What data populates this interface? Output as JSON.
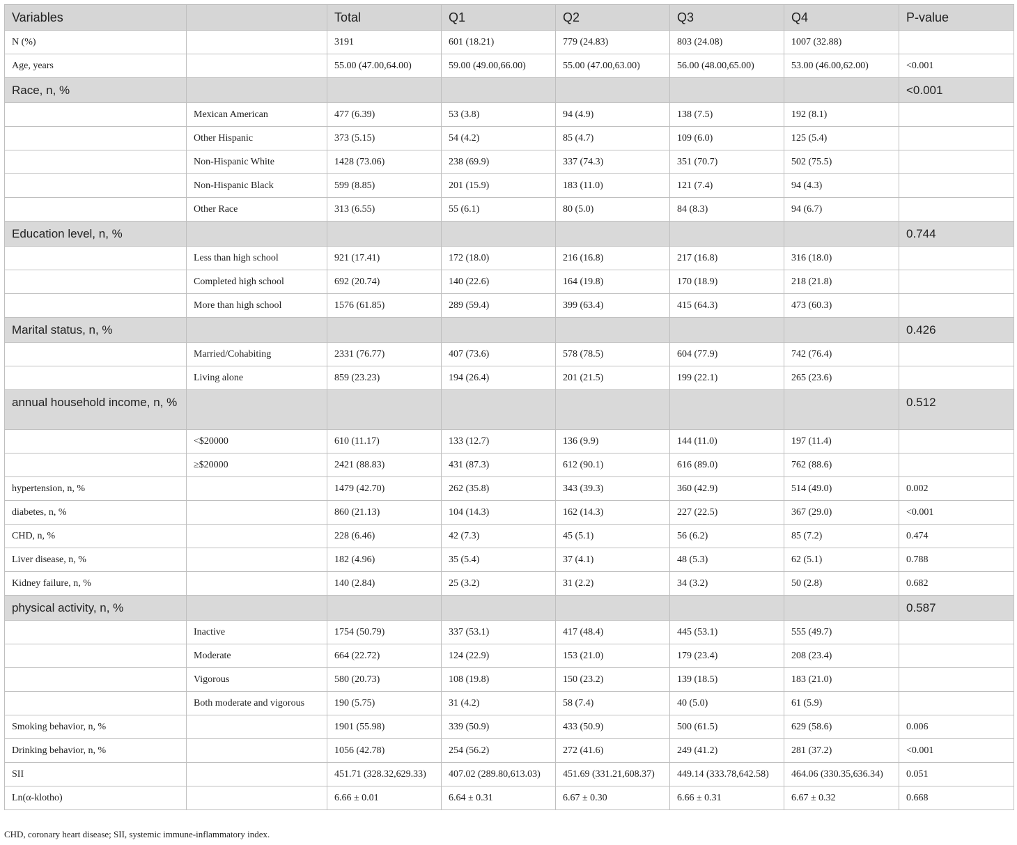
{
  "table": {
    "headers": [
      "Variables",
      "",
      "Total",
      "Q1",
      "Q2",
      "Q3",
      "Q4",
      "P-value"
    ],
    "rows": [
      {
        "type": "data",
        "cells": [
          "N (%)",
          "",
          "3191",
          "601 (18.21)",
          "779 (24.83)",
          "803 (24.08)",
          "1007 (32.88)",
          ""
        ]
      },
      {
        "type": "data",
        "cells": [
          "Age, years",
          "",
          "55.00 (47.00,64.00)",
          "59.00 (49.00,66.00)",
          "55.00 (47.00,63.00)",
          "56.00 (48.00,65.00)",
          "53.00 (46.00,62.00)",
          "<0.001"
        ]
      },
      {
        "type": "section",
        "cells": [
          "Race, n, %",
          "",
          "",
          "",
          "",
          "",
          "",
          "<0.001"
        ]
      },
      {
        "type": "data",
        "cells": [
          "",
          "Mexican American",
          "477 (6.39)",
          "53 (3.8)",
          "94 (4.9)",
          "138 (7.5)",
          "192 (8.1)",
          ""
        ]
      },
      {
        "type": "data",
        "cells": [
          "",
          "Other Hispanic",
          "373 (5.15)",
          "54 (4.2)",
          "85 (4.7)",
          "109 (6.0)",
          "125 (5.4)",
          ""
        ]
      },
      {
        "type": "data",
        "cells": [
          "",
          "Non-Hispanic White",
          "1428 (73.06)",
          "238 (69.9)",
          "337 (74.3)",
          "351 (70.7)",
          "502 (75.5)",
          ""
        ]
      },
      {
        "type": "data",
        "cells": [
          "",
          "Non-Hispanic Black",
          "599 (8.85)",
          "201 (15.9)",
          "183 (11.0)",
          "121 (7.4)",
          "94 (4.3)",
          ""
        ]
      },
      {
        "type": "data",
        "cells": [
          "",
          "Other Race",
          "313 (6.55)",
          "55 (6.1)",
          "80 (5.0)",
          "84 (8.3)",
          "94 (6.7)",
          ""
        ]
      },
      {
        "type": "section",
        "cells": [
          "Education level, n, %",
          "",
          "",
          "",
          "",
          "",
          "",
          "0.744"
        ]
      },
      {
        "type": "data",
        "cells": [
          "",
          "Less than high school",
          "921 (17.41)",
          "172 (18.0)",
          "216 (16.8)",
          "217 (16.8)",
          "316 (18.0)",
          ""
        ]
      },
      {
        "type": "data",
        "cells": [
          "",
          "Completed high school",
          "692 (20.74)",
          "140 (22.6)",
          "164 (19.8)",
          "170 (18.9)",
          "218 (21.8)",
          ""
        ]
      },
      {
        "type": "data",
        "cells": [
          "",
          "More than high school",
          "1576 (61.85)",
          "289 (59.4)",
          "399 (63.4)",
          "415 (64.3)",
          "473 (60.3)",
          ""
        ]
      },
      {
        "type": "section",
        "cells": [
          "Marital status, n, %",
          "",
          "",
          "",
          "",
          "",
          "",
          "0.426"
        ]
      },
      {
        "type": "data",
        "cells": [
          "",
          "Married/Cohabiting",
          "2331 (76.77)",
          "407 (73.6)",
          "578 (78.5)",
          "604 (77.9)",
          "742 (76.4)",
          ""
        ]
      },
      {
        "type": "data",
        "cells": [
          "",
          "Living alone",
          "859 (23.23)",
          "194 (26.4)",
          "201 (21.5)",
          "199 (22.1)",
          "265 (23.6)",
          ""
        ]
      },
      {
        "type": "section-tall",
        "cells": [
          "annual household income, n, %",
          "",
          "",
          "",
          "",
          "",
          "",
          "0.512"
        ]
      },
      {
        "type": "data",
        "cells": [
          "",
          "<$20000",
          "610 (11.17)",
          "133 (12.7)",
          "136 (9.9)",
          "144 (11.0)",
          "197 (11.4)",
          ""
        ]
      },
      {
        "type": "data",
        "cells": [
          "",
          "≥$20000",
          "2421 (88.83)",
          "431 (87.3)",
          "612 (90.1)",
          "616 (89.0)",
          "762 (88.6)",
          ""
        ]
      },
      {
        "type": "data",
        "cells": [
          "hypertension, n, %",
          "",
          "1479 (42.70)",
          "262 (35.8)",
          "343 (39.3)",
          "360 (42.9)",
          "514 (49.0)",
          "0.002"
        ]
      },
      {
        "type": "data",
        "cells": [
          "diabetes, n, %",
          "",
          "860 (21.13)",
          "104 (14.3)",
          "162 (14.3)",
          "227 (22.5)",
          "367 (29.0)",
          "<0.001"
        ]
      },
      {
        "type": "data",
        "cells": [
          "CHD, n, %",
          "",
          "228 (6.46)",
          "42 (7.3)",
          "45 (5.1)",
          "56 (6.2)",
          "85 (7.2)",
          "0.474"
        ]
      },
      {
        "type": "data",
        "cells": [
          "Liver disease, n, %",
          "",
          "182 (4.96)",
          "35 (5.4)",
          "37 (4.1)",
          "48 (5.3)",
          "62 (5.1)",
          "0.788"
        ]
      },
      {
        "type": "data",
        "cells": [
          "Kidney failure, n, %",
          "",
          "140 (2.84)",
          "25 (3.2)",
          "31 (2.2)",
          "34 (3.2)",
          "50 (2.8)",
          "0.682"
        ]
      },
      {
        "type": "section",
        "cells": [
          "physical activity, n, %",
          "",
          "",
          "",
          "",
          "",
          "",
          "0.587"
        ]
      },
      {
        "type": "data",
        "cells": [
          "",
          "Inactive",
          "1754 (50.79)",
          "337 (53.1)",
          "417 (48.4)",
          "445 (53.1)",
          "555 (49.7)",
          ""
        ]
      },
      {
        "type": "data",
        "cells": [
          "",
          "Moderate",
          "664 (22.72)",
          "124 (22.9)",
          "153 (21.0)",
          "179 (23.4)",
          "208 (23.4)",
          ""
        ]
      },
      {
        "type": "data",
        "cells": [
          "",
          "Vigorous",
          "580 (20.73)",
          "108 (19.8)",
          "150 (23.2)",
          "139 (18.5)",
          "183 (21.0)",
          ""
        ]
      },
      {
        "type": "data",
        "cells": [
          "",
          "Both moderate and vigorous",
          "190 (5.75)",
          "31 (4.2)",
          "58 (7.4)",
          "40 (5.0)",
          "61 (5.9)",
          ""
        ]
      },
      {
        "type": "data",
        "cells": [
          "Smoking behavior, n, %",
          "",
          "1901 (55.98)",
          "339 (50.9)",
          "433 (50.9)",
          "500 (61.5)",
          "629 (58.6)",
          "0.006"
        ]
      },
      {
        "type": "data",
        "cells": [
          "Drinking behavior, n, %",
          "",
          "1056 (42.78)",
          "254 (56.2)",
          "272 (41.6)",
          "249 (41.2)",
          "281 (37.2)",
          "<0.001"
        ]
      },
      {
        "type": "data",
        "cells": [
          "SII",
          "",
          "451.71 (328.32,629.33)",
          "407.02 (289.80,613.03)",
          "451.69 (331.21,608.37)",
          "449.14 (333.78,642.58)",
          "464.06 (330.35,636.34)",
          "0.051"
        ]
      },
      {
        "type": "data",
        "cells": [
          "Ln(α-klotho)",
          "",
          "6.66 ± 0.01",
          "6.64 ± 0.31",
          "6.67 ± 0.30",
          "6.66 ± 0.31",
          "6.67 ± 0.32",
          "0.668"
        ]
      }
    ]
  },
  "footnote": "CHD, coronary heart disease; SII, systemic immune-inflammatory index."
}
